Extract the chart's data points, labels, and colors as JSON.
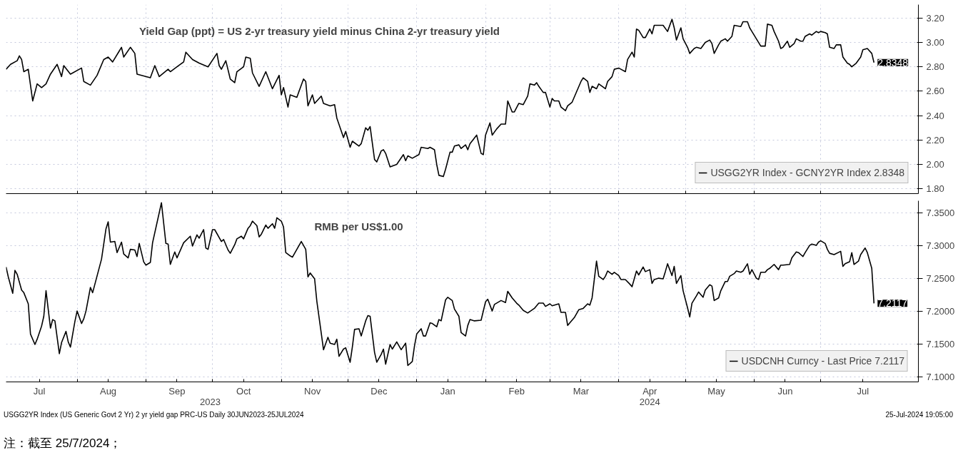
{
  "chart_data": [
    {
      "type": "line",
      "title": "Yield Gap (ppt) = US 2-yr treasury yield minus China 2-yr treasury yield",
      "xlim": [
        "2023-06-30",
        "2024-08-14"
      ],
      "ylim": [
        1.76,
        3.31
      ],
      "yticks": [
        {
          "value": 1.8,
          "label": "1.80"
        },
        {
          "value": 2.0,
          "label": "2.00"
        },
        {
          "value": 2.2,
          "label": "2.20"
        },
        {
          "value": 2.4,
          "label": "2.40"
        },
        {
          "value": 2.6,
          "label": "2.60"
        },
        {
          "value": 2.8,
          "label": "2.80"
        },
        {
          "value": 3.0,
          "label": "3.00"
        },
        {
          "value": 3.2,
          "label": "3.20"
        }
      ],
      "xticks": [
        {
          "value": "2023-08-01",
          "label": null
        },
        {
          "value": "2023-09-01",
          "label": null
        },
        {
          "value": "2023-10-01",
          "label": null
        },
        {
          "value": "2023-11-01",
          "label": null
        },
        {
          "value": "2023-12-01",
          "label": null
        },
        {
          "value": "2024-01-01",
          "label": null
        },
        {
          "value": "2024-02-01",
          "label": null
        },
        {
          "value": "2024-03-01",
          "label": null
        },
        {
          "value": "2024-04-01",
          "label": null
        },
        {
          "value": "2024-05-01",
          "label": null
        },
        {
          "value": "2024-06-01",
          "label": null
        },
        {
          "value": "2024-07-01",
          "label": null
        }
      ],
      "tick_labels": "y",
      "grid": true,
      "legend": "bottom right",
      "series": [
        {
          "name": "USGG2YR Index - GCNY2YR Index 2.8348",
          "color": "#000000",
          "x": [
            "2023-06-30",
            "2023-07-02",
            "2023-07-05",
            "2023-07-06",
            "2023-07-07",
            "2023-07-08",
            "2023-07-10",
            "2023-07-12",
            "2023-07-14",
            "2023-07-16",
            "2023-07-18",
            "2023-07-20",
            "2023-07-23",
            "2023-07-25",
            "2023-07-26",
            "2023-07-29",
            "2023-08-03",
            "2023-08-04",
            "2023-08-07",
            "2023-08-10",
            "2023-08-13",
            "2023-08-15",
            "2023-08-17",
            "2023-08-20",
            "2023-08-21",
            "2023-08-22",
            "2023-08-25",
            "2023-08-27",
            "2023-08-28",
            "2023-09-03",
            "2023-09-05",
            "2023-09-07",
            "2023-09-11",
            "2023-09-12",
            "2023-09-15",
            "2023-09-18",
            "2023-09-19",
            "2023-09-22",
            "2023-09-25",
            "2023-09-29",
            "2023-10-03",
            "2023-10-04",
            "2023-10-05",
            "2023-10-07",
            "2023-10-09",
            "2023-10-11",
            "2023-10-12",
            "2023-10-15",
            "2023-10-16",
            "2023-10-18",
            "2023-10-19",
            "2023-10-22",
            "2023-10-25",
            "2023-10-28",
            "2023-10-31",
            "2023-11-01",
            "2023-11-02",
            "2023-11-04",
            "2023-11-05",
            "2023-11-08",
            "2023-11-11",
            "2023-11-12",
            "2023-11-13",
            "2023-11-15",
            "2023-11-16",
            "2023-11-19",
            "2023-11-20",
            "2023-11-23",
            "2023-11-25",
            "2023-11-26",
            "2023-11-29",
            "2023-11-30",
            "2023-12-02",
            "2023-12-03",
            "2023-12-06",
            "2023-12-07",
            "2023-12-09",
            "2023-12-10",
            "2023-12-11",
            "2023-12-13",
            "2023-12-14",
            "2023-12-16",
            "2023-12-17",
            "2023-12-18",
            "2023-12-20",
            "2023-12-23",
            "2023-12-26",
            "2023-12-27",
            "2023-12-28",
            "2023-12-30",
            "2024-01-02",
            "2024-01-03",
            "2024-01-06",
            "2024-01-07",
            "2024-01-09",
            "2024-01-10",
            "2024-01-11",
            "2024-01-13",
            "2024-01-14",
            "2024-01-16",
            "2024-01-17",
            "2024-01-18",
            "2024-01-20",
            "2024-01-21",
            "2024-01-23",
            "2024-01-24",
            "2024-01-25",
            "2024-01-28",
            "2024-01-30",
            "2024-01-31",
            "2024-02-01",
            "2024-02-03",
            "2024-02-04",
            "2024-02-06",
            "2024-02-08",
            "2024-02-10",
            "2024-02-11",
            "2024-02-13",
            "2024-02-14",
            "2024-02-16",
            "2024-02-18",
            "2024-02-20",
            "2024-02-21",
            "2024-02-23",
            "2024-02-24",
            "2024-02-25",
            "2024-02-27",
            "2024-02-28",
            "2024-03-01",
            "2024-03-02",
            "2024-03-03",
            "2024-03-05",
            "2024-03-06",
            "2024-03-08",
            "2024-03-09",
            "2024-03-11",
            "2024-03-15",
            "2024-03-16",
            "2024-03-18",
            "2024-03-19",
            "2024-03-20",
            "2024-03-22",
            "2024-03-23",
            "2024-03-26",
            "2024-03-27",
            "2024-03-29",
            "2024-03-30",
            "2024-04-01",
            "2024-04-02",
            "2024-04-04",
            "2024-04-05",
            "2024-04-07",
            "2024-04-08",
            "2024-04-09",
            "2024-04-10",
            "2024-04-12",
            "2024-04-13",
            "2024-04-15",
            "2024-04-16",
            "2024-04-17",
            "2024-04-19",
            "2024-04-21",
            "2024-04-23",
            "2024-04-25",
            "2024-04-26",
            "2024-04-27",
            "2024-04-29",
            "2024-04-30",
            "2024-05-02",
            "2024-05-03",
            "2024-05-05",
            "2024-05-06",
            "2024-05-08",
            "2024-05-10",
            "2024-05-12",
            "2024-05-13",
            "2024-05-14",
            "2024-05-16",
            "2024-05-17",
            "2024-05-19",
            "2024-05-20",
            "2024-05-22",
            "2024-05-23",
            "2024-05-26",
            "2024-05-27",
            "2024-05-29",
            "2024-05-30",
            "2024-05-31",
            "2024-06-02",
            "2024-06-04",
            "2024-06-06",
            "2024-06-07",
            "2024-06-09",
            "2024-06-10",
            "2024-06-12",
            "2024-06-13",
            "2024-06-14",
            "2024-06-16",
            "2024-06-17",
            "2024-06-19",
            "2024-06-20",
            "2024-06-22",
            "2024-06-23",
            "2024-06-24",
            "2024-06-26",
            "2024-06-27",
            "2024-06-29",
            "2024-06-30",
            "2024-07-01",
            "2024-07-03",
            "2024-07-04",
            "2024-07-05",
            "2024-07-07",
            "2024-07-08",
            "2024-07-10",
            "2024-07-11",
            "2024-07-13",
            "2024-07-14",
            "2024-07-15",
            "2024-07-17",
            "2024-07-19",
            "2024-07-20",
            "2024-07-22",
            "2024-07-24",
            "2024-07-25"
          ],
          "values": [
            2.78,
            2.82,
            2.85,
            2.89,
            2.86,
            2.76,
            2.78,
            2.52,
            2.66,
            2.63,
            2.66,
            2.74,
            2.82,
            2.72,
            2.81,
            2.74,
            2.79,
            2.68,
            2.65,
            2.73,
            2.86,
            2.88,
            2.84,
            2.93,
            2.96,
            2.88,
            2.96,
            2.91,
            2.74,
            2.71,
            2.81,
            2.72,
            2.78,
            2.76,
            2.8,
            2.84,
            2.92,
            2.86,
            2.83,
            2.8,
            2.91,
            2.81,
            2.78,
            2.85,
            2.7,
            2.67,
            2.76,
            2.8,
            2.88,
            2.87,
            2.75,
            2.64,
            2.76,
            2.62,
            2.73,
            2.57,
            2.63,
            2.47,
            2.57,
            2.55,
            2.7,
            2.68,
            2.48,
            2.57,
            2.5,
            2.56,
            2.5,
            2.48,
            2.49,
            2.38,
            2.22,
            2.27,
            2.14,
            2.19,
            2.15,
            2.17,
            2.3,
            2.28,
            2.31,
            2.04,
            2.02,
            2.11,
            2.12,
            2.09,
            1.98,
            2.0,
            2.08,
            2.03,
            2.07,
            2.05,
            2.08,
            2.14,
            2.13,
            2.14,
            2.12,
            2.0,
            1.91,
            1.9,
            1.96,
            2.1,
            2.1,
            2.15,
            2.16,
            2.13,
            2.16,
            2.12,
            2.17,
            2.24,
            2.09,
            2.08,
            2.24,
            2.34,
            2.24,
            2.29,
            2.33,
            2.33,
            2.52,
            2.43,
            2.43,
            2.5,
            2.49,
            2.56,
            2.66,
            2.65,
            2.67,
            2.64,
            2.59,
            2.59,
            2.47,
            2.54,
            2.52,
            2.52,
            2.47,
            2.44,
            2.48,
            2.51,
            2.68,
            2.71,
            2.68,
            2.59,
            2.64,
            2.62,
            2.66,
            2.62,
            2.68,
            2.72,
            2.78,
            2.79,
            2.78,
            2.76,
            2.86,
            2.92,
            2.88,
            3.11,
            3.1,
            3.04,
            3.04,
            3.11,
            3.07,
            3.14,
            3.14,
            3.14,
            3.09,
            3.19,
            3.12,
            3.02,
            3.12,
            3.03,
            2.96,
            2.91,
            2.95,
            2.96,
            2.95,
            3.0,
            3.02,
            2.99,
            2.91,
            2.98,
            3.01,
            3.03,
            3.01,
            3.05,
            3.14,
            3.13,
            3.17,
            3.17,
            3.12,
            3.09,
            3.03,
            2.97,
            2.97,
            3.15,
            3.14,
            3.09,
            3.01,
            2.95,
            2.96,
            3.01,
            2.96,
            2.99,
            3.03,
            3.01,
            3.01,
            3.05,
            3.07,
            3.06,
            3.09,
            3.08,
            3.09,
            3.08,
            3.07,
            2.96,
            2.95,
            2.98,
            2.98,
            2.88,
            2.83,
            2.82,
            2.8,
            2.83,
            2.88,
            2.94,
            2.95,
            2.91,
            2.8348
          ]
        }
      ],
      "annotations": [
        {
          "text": "2.8348",
          "x": "2024-07-25",
          "y": 2.8348
        }
      ]
    },
    {
      "type": "line",
      "title": "RMB per US$1.00",
      "xlim": [
        "2023-06-30",
        "2024-08-14"
      ],
      "ylim": [
        7.092,
        7.368
      ],
      "yticks": [
        {
          "value": 7.1,
          "label": "7.1000"
        },
        {
          "value": 7.15,
          "label": "7.1500"
        },
        {
          "value": 7.2,
          "label": "7.2000"
        },
        {
          "value": 7.25,
          "label": "7.2500"
        },
        {
          "value": 7.3,
          "label": "7.3000"
        },
        {
          "value": 7.35,
          "label": "7.3500"
        }
      ],
      "xticks": [
        {
          "value": "2023-07-15",
          "label": "Jul"
        },
        {
          "value": "2023-08-01",
          "label": null
        },
        {
          "value": "2023-08-15",
          "label": "Aug"
        },
        {
          "value": "2023-09-01",
          "label": null
        },
        {
          "value": "2023-09-15",
          "label": "Sep"
        },
        {
          "value": "2023-10-01",
          "label": null
        },
        {
          "value": "2023-10-15",
          "label": "Oct"
        },
        {
          "value": "2023-11-01",
          "label": null
        },
        {
          "value": "2023-11-15",
          "label": "Nov"
        },
        {
          "value": "2023-12-01",
          "label": null
        },
        {
          "value": "2023-12-15",
          "label": "Dec"
        },
        {
          "value": "2024-01-01",
          "label": null
        },
        {
          "value": "2024-01-15",
          "label": "Jan"
        },
        {
          "value": "2024-02-01",
          "label": null
        },
        {
          "value": "2024-02-15",
          "label": "Feb"
        },
        {
          "value": "2024-03-01",
          "label": null
        },
        {
          "value": "2024-03-15",
          "label": "Mar"
        },
        {
          "value": "2024-04-01",
          "label": null
        },
        {
          "value": "2024-04-15",
          "label": "Apr"
        },
        {
          "value": "2024-05-01",
          "label": null
        },
        {
          "value": "2024-05-15",
          "label": "May"
        },
        {
          "value": "2024-06-01",
          "label": null
        },
        {
          "value": "2024-06-15",
          "label": "Jun"
        },
        {
          "value": "2024-07-01",
          "label": null
        },
        {
          "value": "2024-07-20",
          "label": "Jul"
        }
      ],
      "x2lim": [
        "2023-06-30",
        "2024-08-14"
      ],
      "x2ticks": [
        {
          "value": "2023-09-30",
          "label": "2023"
        },
        {
          "value": "2024-04-15",
          "label": "2024"
        }
      ],
      "grid": true,
      "legend": "bottom right",
      "series": [
        {
          "name": "USDCNH Curncy - Last Price 7.2117",
          "color": "#000000",
          "x": [
            "2023-06-30",
            "2023-07-01",
            "2023-07-03",
            "2023-07-04",
            "2023-07-05",
            "2023-07-07",
            "2023-07-08",
            "2023-07-10",
            "2023-07-11",
            "2023-07-13",
            "2023-07-14",
            "2023-07-16",
            "2023-07-17",
            "2023-07-18",
            "2023-07-20",
            "2023-07-21",
            "2023-07-22",
            "2023-07-24",
            "2023-07-25",
            "2023-07-27",
            "2023-07-28",
            "2023-07-29",
            "2023-07-31",
            "2023-08-01",
            "2023-08-03",
            "2023-08-04",
            "2023-08-05",
            "2023-08-07",
            "2023-08-08",
            "2023-08-12",
            "2023-08-14",
            "2023-08-15",
            "2023-08-16",
            "2023-08-18",
            "2023-08-19",
            "2023-08-21",
            "2023-08-22",
            "2023-08-24",
            "2023-08-25",
            "2023-08-27",
            "2023-08-28",
            "2023-08-29",
            "2023-08-31",
            "2023-09-01",
            "2023-09-03",
            "2023-09-04",
            "2023-09-08",
            "2023-09-10",
            "2023-09-11",
            "2023-09-12",
            "2023-09-14",
            "2023-09-15",
            "2023-09-18",
            "2023-09-21",
            "2023-09-22",
            "2023-09-24",
            "2023-09-25",
            "2023-09-27",
            "2023-09-28",
            "2023-09-29",
            "2023-10-01",
            "2023-10-02",
            "2023-10-05",
            "2023-10-06",
            "2023-10-08",
            "2023-10-09",
            "2023-10-11",
            "2023-10-12",
            "2023-10-14",
            "2023-10-15",
            "2023-10-17",
            "2023-10-18",
            "2023-10-19",
            "2023-10-21",
            "2023-10-22",
            "2023-10-23",
            "2023-10-25",
            "2023-10-26",
            "2023-10-28",
            "2023-10-29",
            "2023-10-30",
            "2023-11-01",
            "2023-11-02",
            "2023-11-03",
            "2023-11-05",
            "2023-11-06",
            "2023-11-07",
            "2023-11-10",
            "2023-11-12",
            "2023-11-13",
            "2023-11-14",
            "2023-11-16",
            "2023-11-17",
            "2023-11-19",
            "2023-11-20",
            "2023-11-22",
            "2023-11-23",
            "2023-11-25",
            "2023-11-26",
            "2023-11-27",
            "2023-11-29",
            "2023-11-30",
            "2023-12-02",
            "2023-12-03",
            "2023-12-04",
            "2023-12-06",
            "2023-12-07",
            "2023-12-09",
            "2023-12-10",
            "2023-12-11",
            "2023-12-13",
            "2023-12-14",
            "2023-12-16",
            "2023-12-17",
            "2023-12-18",
            "2023-12-20",
            "2023-12-21",
            "2023-12-23",
            "2023-12-24",
            "2023-12-25",
            "2023-12-27",
            "2023-12-28",
            "2023-12-30",
            "2023-12-31",
            "2024-01-01",
            "2024-01-03",
            "2024-01-04",
            "2024-01-05",
            "2024-01-07",
            "2024-01-08",
            "2024-01-10",
            "2024-01-11",
            "2024-01-12",
            "2024-01-14",
            "2024-01-15",
            "2024-01-17",
            "2024-01-18",
            "2024-01-20",
            "2024-01-21",
            "2024-01-23",
            "2024-01-24",
            "2024-01-25",
            "2024-01-27",
            "2024-01-30",
            "2024-02-01",
            "2024-02-02",
            "2024-02-04",
            "2024-02-05",
            "2024-02-08",
            "2024-02-10",
            "2024-02-11",
            "2024-02-13",
            "2024-02-15",
            "2024-02-16",
            "2024-02-18",
            "2024-02-20",
            "2024-02-23",
            "2024-02-25",
            "2024-02-27",
            "2024-02-28",
            "2024-03-01",
            "2024-03-02",
            "2024-03-05",
            "2024-03-06",
            "2024-03-08",
            "2024-03-09",
            "2024-03-12",
            "2024-03-14",
            "2024-03-16",
            "2024-03-18",
            "2024-03-19",
            "2024-03-20",
            "2024-03-22",
            "2024-03-23",
            "2024-03-25",
            "2024-03-26",
            "2024-03-27",
            "2024-03-29",
            "2024-03-30",
            "2024-04-01",
            "2024-04-02",
            "2024-04-04",
            "2024-04-06",
            "2024-04-07",
            "2024-04-09",
            "2024-04-10",
            "2024-04-12",
            "2024-04-13",
            "2024-04-15",
            "2024-04-16",
            "2024-04-17",
            "2024-04-19",
            "2024-04-21",
            "2024-04-22",
            "2024-04-23",
            "2024-04-25",
            "2024-04-26",
            "2024-04-27",
            "2024-04-29",
            "2024-04-30",
            "2024-05-02",
            "2024-05-03",
            "2024-05-04",
            "2024-05-06",
            "2024-05-07",
            "2024-05-09",
            "2024-05-10",
            "2024-05-12",
            "2024-05-13",
            "2024-05-14",
            "2024-05-16",
            "2024-05-17",
            "2024-05-19",
            "2024-05-20",
            "2024-05-21",
            "2024-05-23",
            "2024-05-24",
            "2024-05-26",
            "2024-05-27",
            "2024-05-29",
            "2024-05-30",
            "2024-05-31",
            "2024-06-02",
            "2024-06-03",
            "2024-06-04",
            "2024-06-06",
            "2024-06-07",
            "2024-06-08",
            "2024-06-10",
            "2024-06-12",
            "2024-06-13",
            "2024-06-14",
            "2024-06-17",
            "2024-06-18",
            "2024-06-20",
            "2024-06-21",
            "2024-06-23",
            "2024-06-24",
            "2024-06-26",
            "2024-06-27",
            "2024-06-29",
            "2024-06-30",
            "2024-07-01",
            "2024-07-03",
            "2024-07-04",
            "2024-07-05",
            "2024-07-07",
            "2024-07-10",
            "2024-07-11",
            "2024-07-12",
            "2024-07-14",
            "2024-07-15",
            "2024-07-16",
            "2024-07-18",
            "2024-07-19",
            "2024-07-21",
            "2024-07-22",
            "2024-07-24",
            "2024-07-25"
          ],
          "values": [
            7.267,
            7.252,
            7.227,
            7.262,
            7.256,
            7.232,
            7.228,
            7.211,
            7.165,
            7.149,
            7.157,
            7.177,
            7.192,
            7.231,
            7.174,
            7.187,
            7.185,
            7.135,
            7.152,
            7.169,
            7.153,
            7.145,
            7.184,
            7.2,
            7.181,
            7.188,
            7.2,
            7.236,
            7.228,
            7.279,
            7.325,
            7.336,
            7.305,
            7.306,
            7.289,
            7.305,
            7.287,
            7.281,
            7.294,
            7.293,
            7.283,
            7.303,
            7.275,
            7.27,
            7.274,
            7.304,
            7.365,
            7.303,
            7.302,
            7.271,
            7.29,
            7.281,
            7.304,
            7.314,
            7.299,
            7.316,
            7.311,
            7.324,
            7.296,
            7.294,
            7.324,
            7.324,
            7.306,
            7.309,
            7.293,
            7.288,
            7.301,
            7.31,
            7.314,
            7.31,
            7.326,
            7.33,
            7.337,
            7.33,
            7.313,
            7.317,
            7.331,
            7.326,
            7.333,
            7.326,
            7.342,
            7.337,
            7.328,
            7.289,
            7.284,
            7.282,
            7.288,
            7.306,
            7.294,
            7.252,
            7.258,
            7.249,
            7.215,
            7.166,
            7.141,
            7.16,
            7.151,
            7.149,
            7.157,
            7.131,
            7.142,
            7.144,
            7.122,
            7.145,
            7.172,
            7.173,
            7.162,
            7.185,
            7.193,
            7.192,
            7.137,
            7.122,
            7.134,
            7.142,
            7.119,
            7.149,
            7.142,
            7.153,
            7.147,
            7.141,
            7.151,
            7.117,
            7.123,
            7.147,
            7.165,
            7.173,
            7.162,
            7.162,
            7.182,
            7.181,
            7.176,
            7.187,
            7.185,
            7.217,
            7.221,
            7.216,
            7.203,
            7.192,
            7.167,
            7.162,
            7.178,
            7.187,
            7.185,
            7.186,
            7.214,
            7.218,
            7.2,
            7.21,
            7.216,
            7.213,
            7.23,
            7.22,
            7.212,
            7.209,
            7.201,
            7.197,
            7.204,
            7.212,
            7.212,
            7.207,
            7.211,
            7.208,
            7.211,
            7.198,
            7.198,
            7.178,
            7.19,
            7.202,
            7.204,
            7.211,
            7.209,
            7.22,
            7.276,
            7.253,
            7.248,
            7.253,
            7.261,
            7.256,
            7.259,
            7.254,
            7.248,
            7.248,
            7.241,
            7.237,
            7.261,
            7.255,
            7.267,
            7.26,
            7.263,
            7.242,
            7.248,
            7.25,
            7.249,
            7.26,
            7.272,
            7.254,
            7.268,
            7.242,
            7.254,
            7.231,
            7.205,
            7.191,
            7.212,
            7.223,
            7.229,
            7.221,
            7.232,
            7.24,
            7.238,
            7.216,
            7.22,
            7.231,
            7.245,
            7.245,
            7.253,
            7.257,
            7.261,
            7.259,
            7.261,
            7.272,
            7.256,
            7.263,
            7.25,
            7.248,
            7.259,
            7.259,
            7.263,
            7.265,
            7.271,
            7.263,
            7.27,
            7.27,
            7.271,
            7.281,
            7.29,
            7.289,
            7.283,
            7.289,
            7.3,
            7.302,
            7.3,
            7.305,
            7.307,
            7.303,
            7.294,
            7.288,
            7.286,
            7.291,
            7.268,
            7.272,
            7.275,
            7.289,
            7.271,
            7.276,
            7.286,
            7.296,
            7.289,
            7.265,
            7.2117
          ]
        }
      ],
      "annotations": [
        {
          "text": "7.2117",
          "x": "2024-07-25",
          "y": 7.2117
        },
        "USGG2YR Index (US Generic Govt 2 Yr) 2 yr yield gap PRC-US  Daily 30JUN2023-25JUL2024",
        "25-Jul-2024 19:05:00",
        "注：截至 25/7/2024；"
      ]
    }
  ]
}
